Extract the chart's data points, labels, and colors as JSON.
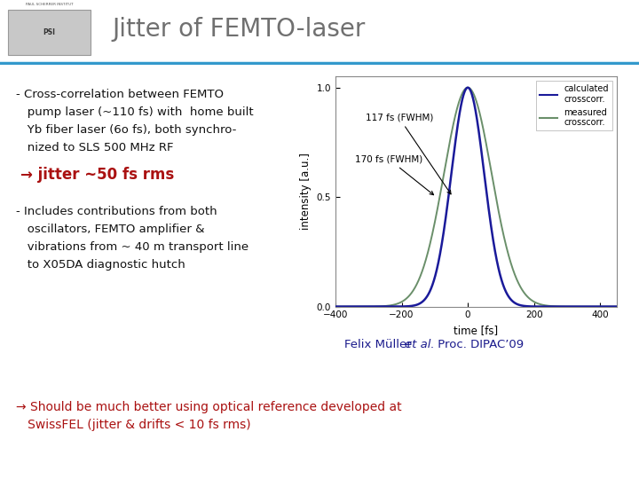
{
  "title": "Jitter of FEMTO-laser",
  "title_color": "#707070",
  "background_color": "#ffffff",
  "header_bg_color": "#ffffff",
  "header_line_color": "#3399cc",
  "bullet1_lines": [
    "- Cross-correlation between FEMTO",
    "   pump laser (~110 fs) with  home built",
    "   Yb fiber laser (6o fs), both synchro-",
    "   nized to SLS 500 MHz RF"
  ],
  "jitter_text": "→ jitter ~50 fs rms",
  "jitter_color": "#aa1111",
  "bullet2_lines": [
    "- Includes contributions from both",
    "   oscillators, FEMTO amplifier &",
    "   vibrations from ~ 40 m transport line",
    "   to X05DA diagnostic hutch"
  ],
  "reference_text_normal": "Felix Müller ",
  "reference_text_italic": "et al.",
  "reference_text_end": " Proc. DIPAC’09",
  "reference_color": "#1a1a8c",
  "bottom_line1": "→ Should be much better using optical reference developed at",
  "bottom_line2": "   SwissFEL (jitter & drifts < 10 fs rms)",
  "bottom_color": "#aa1111",
  "calc_color": "#1a1a9a",
  "meas_color": "#6a8f6a",
  "fwhm_narrow": 117,
  "fwhm_wide": 170,
  "anno1_text": "117 fs (FWHM)",
  "anno2_text": "170 fs (FWHM)",
  "plot_xlim": [
    -400,
    450
  ],
  "plot_ylim": [
    0,
    1.05
  ],
  "plot_xticks": [
    -400,
    -200,
    0,
    200,
    400
  ],
  "plot_yticks": [
    0,
    0.5,
    1
  ],
  "legend1": "calculated\ncrosscorr.",
  "legend2": "measured\ncrosscorr."
}
